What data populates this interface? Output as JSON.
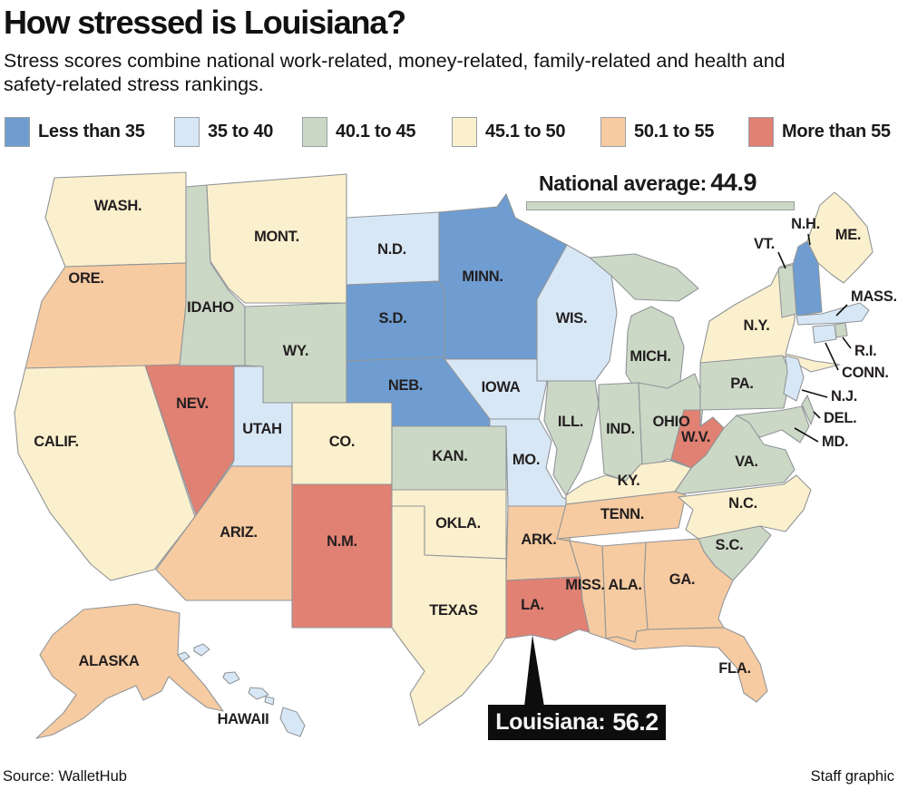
{
  "header": {
    "title": "How stressed is Louisiana?",
    "subtitle_lines": [
      "Stress scores combine national work-related, money-related, family-related and health and",
      "safety-related stress rankings."
    ]
  },
  "legend": {
    "items": [
      {
        "label": "Less than 35",
        "color": "#6f9dd1"
      },
      {
        "label": "35 to 40",
        "color": "#d8e7f5"
      },
      {
        "label": "40.1 to 45",
        "color": "#cbd8c6"
      },
      {
        "label": "45.1 to 50",
        "color": "#fbf0cd"
      },
      {
        "label": "50.1 to 55",
        "color": "#f6cba1"
      },
      {
        "label": "More than 55",
        "color": "#e08173"
      }
    ]
  },
  "annotations": {
    "national_average": {
      "label": "National average:",
      "value": "44.9",
      "bar_color": "#ccd9c8"
    },
    "louisiana_callout": {
      "label": "Louisiana:",
      "value": "56.2"
    }
  },
  "footer": {
    "source": "Source: WalletHub",
    "credit": "Staff graphic"
  },
  "chart_data": {
    "type": "choropleth-map",
    "region": "United States",
    "metric": "Stress score (combined work, money, family, health and safety stress rankings)",
    "bins": [
      "Less than 35",
      "35 to 40",
      "40.1 to 45",
      "45.1 to 50",
      "50.1 to 55",
      "More than 55"
    ],
    "national_average": 44.9,
    "highlight": {
      "state": "Louisiana",
      "value": 56.2
    },
    "states": [
      {
        "id": "WA",
        "label": "WASH.",
        "bin": "45.1 to 50"
      },
      {
        "id": "OR",
        "label": "ORE.",
        "bin": "50.1 to 55"
      },
      {
        "id": "CA",
        "label": "CALIF.",
        "bin": "45.1 to 50"
      },
      {
        "id": "NV",
        "label": "NEV.",
        "bin": "More than 55"
      },
      {
        "id": "ID",
        "label": "IDAHO",
        "bin": "40.1 to 45"
      },
      {
        "id": "MT",
        "label": "MONT.",
        "bin": "45.1 to 50"
      },
      {
        "id": "WY",
        "label": "WY.",
        "bin": "40.1 to 45"
      },
      {
        "id": "UT",
        "label": "UTAH",
        "bin": "35 to 40"
      },
      {
        "id": "CO",
        "label": "CO.",
        "bin": "45.1 to 50"
      },
      {
        "id": "AZ",
        "label": "ARIZ.",
        "bin": "50.1 to 55"
      },
      {
        "id": "NM",
        "label": "N.M.",
        "bin": "More than 55"
      },
      {
        "id": "ND",
        "label": "N.D.",
        "bin": "35 to 40"
      },
      {
        "id": "SD",
        "label": "S.D.",
        "bin": "Less than 35"
      },
      {
        "id": "NE",
        "label": "NEB.",
        "bin": "Less than 35"
      },
      {
        "id": "KS",
        "label": "KAN.",
        "bin": "40.1 to 45"
      },
      {
        "id": "OK",
        "label": "OKLA.",
        "bin": "45.1 to 50"
      },
      {
        "id": "TX",
        "label": "TEXAS",
        "bin": "45.1 to 50"
      },
      {
        "id": "MN",
        "label": "MINN.",
        "bin": "Less than 35"
      },
      {
        "id": "IA",
        "label": "IOWA",
        "bin": "35 to 40"
      },
      {
        "id": "MO",
        "label": "MO.",
        "bin": "35 to 40"
      },
      {
        "id": "AR",
        "label": "ARK.",
        "bin": "50.1 to 55"
      },
      {
        "id": "LA",
        "label": "LA.",
        "bin": "More than 55"
      },
      {
        "id": "WI",
        "label": "WIS.",
        "bin": "35 to 40"
      },
      {
        "id": "MI",
        "label": "MICH.",
        "bin": "40.1 to 45"
      },
      {
        "id": "IL",
        "label": "ILL.",
        "bin": "40.1 to 45"
      },
      {
        "id": "IN",
        "label": "IND.",
        "bin": "40.1 to 45"
      },
      {
        "id": "OH",
        "label": "OHIO",
        "bin": "40.1 to 45"
      },
      {
        "id": "PA",
        "label": "PA.",
        "bin": "40.1 to 45"
      },
      {
        "id": "NY",
        "label": "N.Y.",
        "bin": "45.1 to 50"
      },
      {
        "id": "VT",
        "label": "VT.",
        "bin": "40.1 to 45"
      },
      {
        "id": "NH",
        "label": "N.H.",
        "bin": "Less than 35"
      },
      {
        "id": "ME",
        "label": "ME.",
        "bin": "45.1 to 50"
      },
      {
        "id": "MA",
        "label": "MASS.",
        "bin": "35 to 40"
      },
      {
        "id": "RI",
        "label": "R.I.",
        "bin": "40.1 to 45"
      },
      {
        "id": "CT",
        "label": "CONN.",
        "bin": "35 to 40"
      },
      {
        "id": "NJ",
        "label": "N.J.",
        "bin": "35 to 40"
      },
      {
        "id": "DE",
        "label": "DEL.",
        "bin": "40.1 to 45"
      },
      {
        "id": "MD",
        "label": "MD.",
        "bin": "40.1 to 45"
      },
      {
        "id": "WV",
        "label": "W.V.",
        "bin": "More than 55"
      },
      {
        "id": "VA",
        "label": "VA.",
        "bin": "40.1 to 45"
      },
      {
        "id": "KY",
        "label": "KY.",
        "bin": "45.1 to 50"
      },
      {
        "id": "TN",
        "label": "TENN.",
        "bin": "50.1 to 55"
      },
      {
        "id": "NC",
        "label": "N.C.",
        "bin": "45.1 to 50"
      },
      {
        "id": "SC",
        "label": "S.C.",
        "bin": "40.1 to 45"
      },
      {
        "id": "GA",
        "label": "GA.",
        "bin": "50.1 to 55"
      },
      {
        "id": "AL",
        "label": "ALA.",
        "bin": "50.1 to 55"
      },
      {
        "id": "MS",
        "label": "MISS.",
        "bin": "50.1 to 55"
      },
      {
        "id": "FL",
        "label": "FLA.",
        "bin": "50.1 to 55"
      },
      {
        "id": "AK",
        "label": "ALASKA",
        "bin": "50.1 to 55"
      },
      {
        "id": "HI",
        "label": "HAWAII",
        "bin": "35 to 40"
      }
    ]
  }
}
